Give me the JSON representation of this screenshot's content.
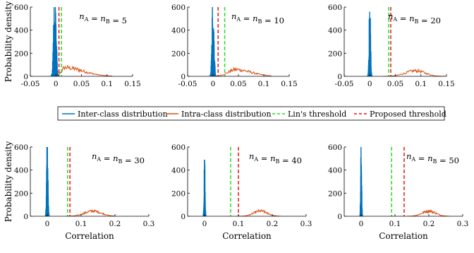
{
  "colors": {
    "inter": "#0072BD",
    "intra": "#D95319",
    "lin": "#22DD22",
    "proposed": "#EE1111"
  },
  "legend": {
    "entries": [
      {
        "key": "inter",
        "label": "Inter-class distribution",
        "style": "solid"
      },
      {
        "key": "intra",
        "label": "Intra-class distribution",
        "style": "solid"
      },
      {
        "key": "lin",
        "label": "Lin's threshold",
        "style": "dashed"
      },
      {
        "key": "proposed",
        "label": "Proposed threshold",
        "style": "dashed"
      }
    ]
  },
  "chart_data": [
    {
      "type": "histogram",
      "annotation": "n_A = n_B = 5",
      "ylabel": "Probability density",
      "xlabel": "",
      "xlim": [
        -0.05,
        0.15
      ],
      "ylim": [
        0,
        600
      ],
      "xticks": [
        "-0.05",
        "0",
        "0.05",
        "0.1",
        "0.15"
      ],
      "yticks": [
        "0",
        "200",
        "400",
        "600"
      ],
      "inter": {
        "center": -0.002,
        "spread": 0.0025,
        "peak": 600
      },
      "intra": {
        "center": 0.018,
        "spread_left": 0.007,
        "spread_right": 0.035,
        "peak": 75,
        "end": 0.11
      },
      "lin_threshold": 0.011,
      "proposed_threshold": 0.006
    },
    {
      "type": "histogram",
      "annotation": "n_A = n_B = 10",
      "ylabel": "",
      "xlabel": "",
      "xlim": [
        -0.05,
        0.15
      ],
      "ylim": [
        0,
        600
      ],
      "xticks": [
        "-0.05",
        "0",
        "0.05",
        "0.1",
        "0.15"
      ],
      "yticks": [
        "0",
        "200",
        "400",
        "600"
      ],
      "inter": {
        "center": 0.0,
        "spread": 0.002,
        "peak": 600
      },
      "intra": {
        "center": 0.045,
        "spread_left": 0.015,
        "spread_right": 0.03,
        "peak": 58,
        "end": 0.115
      },
      "lin_threshold": 0.023,
      "proposed_threshold": 0.01
    },
    {
      "type": "histogram",
      "annotation": "n_A = n_B = 20",
      "ylabel": "",
      "xlabel": "",
      "xlim": [
        -0.05,
        0.15
      ],
      "ylim": [
        0,
        600
      ],
      "xticks": [
        "-0.05",
        "0",
        "0.05",
        "0.1",
        "0.15"
      ],
      "yticks": [
        "0",
        "200",
        "400",
        "600"
      ],
      "inter": {
        "center": 0.0,
        "spread": 0.0015,
        "peak": 560
      },
      "intra": {
        "center": 0.09,
        "spread_left": 0.02,
        "spread_right": 0.018,
        "peak": 48,
        "end": 0.15
      },
      "lin_threshold": 0.037,
      "proposed_threshold": 0.041
    },
    {
      "type": "histogram",
      "annotation": "n_A = n_B = 30",
      "ylabel": "Probability density",
      "xlabel": "Correlation",
      "xlim": [
        -0.05,
        0.3
      ],
      "ylim": [
        0,
        600
      ],
      "xticks": [
        "0",
        "0.1",
        "0.2",
        "0.3"
      ],
      "yticks": [
        "0",
        "200",
        "400",
        "600"
      ],
      "inter": {
        "center": 0.0,
        "spread": 0.002,
        "peak": 600
      },
      "intra": {
        "center": 0.135,
        "spread_left": 0.025,
        "spread_right": 0.025,
        "peak": 45,
        "end": 0.2
      },
      "lin_threshold": 0.06,
      "proposed_threshold": 0.067
    },
    {
      "type": "histogram",
      "annotation": "n_A = n_B = 40",
      "ylabel": "",
      "xlabel": "Correlation",
      "xlim": [
        -0.05,
        0.3
      ],
      "ylim": [
        0,
        600
      ],
      "xticks": [
        "0",
        "0.1",
        "0.2",
        "0.3"
      ],
      "yticks": [
        "0",
        "200",
        "400",
        "600"
      ],
      "inter": {
        "center": 0.0,
        "spread": 0.0015,
        "peak": 490
      },
      "intra": {
        "center": 0.165,
        "spread_left": 0.02,
        "spread_right": 0.02,
        "peak": 45,
        "end": 0.225
      },
      "lin_threshold": 0.077,
      "proposed_threshold": 0.1
    },
    {
      "type": "histogram",
      "annotation": "n_A = n_B = 50",
      "ylabel": "",
      "xlabel": "Correlation",
      "xlim": [
        -0.05,
        0.3
      ],
      "ylim": [
        0,
        600
      ],
      "xticks": [
        "0",
        "0.1",
        "0.2",
        "0.3"
      ],
      "yticks": [
        "0",
        "200",
        "400",
        "600"
      ],
      "inter": {
        "center": 0.0,
        "spread": 0.0015,
        "peak": 600
      },
      "intra": {
        "center": 0.2,
        "spread_left": 0.02,
        "spread_right": 0.02,
        "peak": 45,
        "end": 0.26
      },
      "lin_threshold": 0.09,
      "proposed_threshold": 0.127
    }
  ]
}
